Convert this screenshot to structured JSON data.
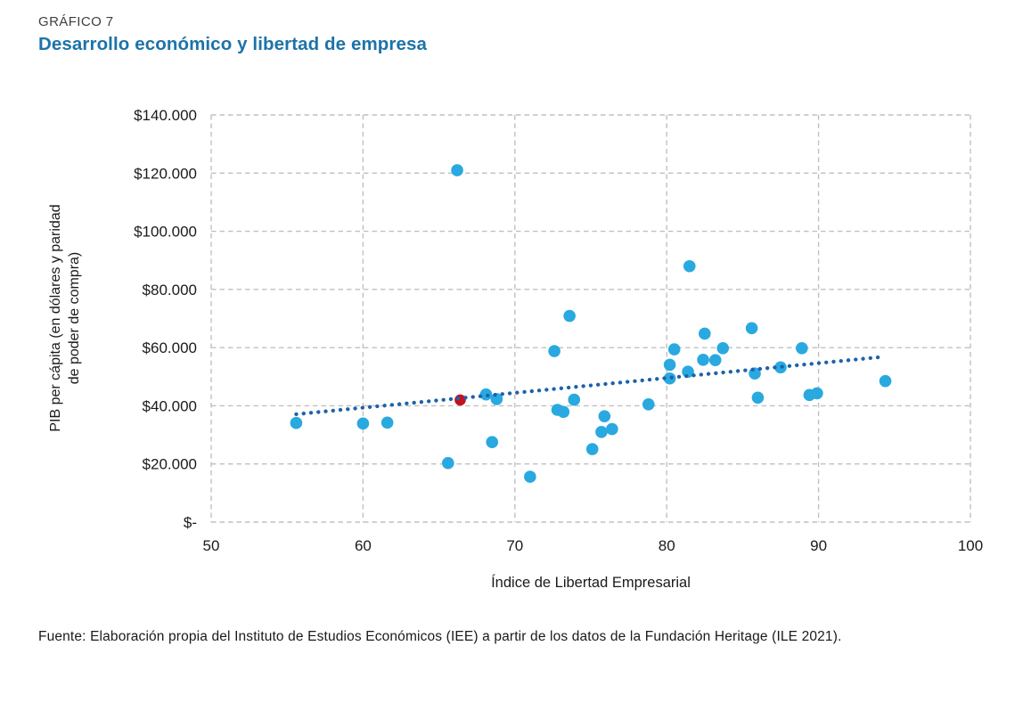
{
  "header": {
    "kicker": "GRÁFICO 7",
    "title": "Desarrollo económico y libertad de empresa"
  },
  "footer": {
    "source": "Fuente: Elaboración propia del Instituto de Estudios Económicos (IEE) a partir de los datos de la Fundación Heritage (ILE 2021)."
  },
  "colors": {
    "title_blue": "#1c73a9",
    "point_blue": "#29a9e0",
    "highlight_red": "#c1121f",
    "trend_blue": "#1e62a9",
    "grid_gray": "#c0c0c0",
    "text": "#1a1a1a"
  },
  "chart_data": {
    "type": "scatter",
    "title": "Desarrollo económico y libertad de empresa",
    "xlabel": "Índice de Libertad Empresarial",
    "ylabel": "PIB per cápita (en dólares y paridad de poder de compra)",
    "ylabel_lines": [
      "PIB per cápita (en dólares y paridad",
      "de poder de compra)"
    ],
    "xlim": [
      50,
      100
    ],
    "ylim": [
      0,
      140000
    ],
    "grid": "dashed",
    "legend": "none",
    "x_ticks": [
      {
        "v": 50,
        "label": "50"
      },
      {
        "v": 60,
        "label": "60"
      },
      {
        "v": 70,
        "label": "70"
      },
      {
        "v": 80,
        "label": "80"
      },
      {
        "v": 90,
        "label": "90"
      },
      {
        "v": 100,
        "label": "100"
      }
    ],
    "y_ticks": [
      {
        "v": 0,
        "label": "$-"
      },
      {
        "v": 20000,
        "label": "$20.000"
      },
      {
        "v": 40000,
        "label": "$40.000"
      },
      {
        "v": 60000,
        "label": "$60.000"
      },
      {
        "v": 80000,
        "label": "$80.000"
      },
      {
        "v": 100000,
        "label": "$100.000"
      },
      {
        "v": 120000,
        "label": "$120.000"
      },
      {
        "v": 140000,
        "label": "$140.000"
      }
    ],
    "series": [
      {
        "name": "paises",
        "color": "#29a9e0",
        "radius": 6.8,
        "points": [
          [
            55.6,
            34100
          ],
          [
            60.0,
            33900
          ],
          [
            61.6,
            34200
          ],
          [
            65.6,
            20300
          ],
          [
            66.2,
            121000
          ],
          [
            68.1,
            43900
          ],
          [
            68.5,
            27500
          ],
          [
            68.8,
            42300
          ],
          [
            71.0,
            15600
          ],
          [
            72.6,
            58800
          ],
          [
            72.8,
            38600
          ],
          [
            73.2,
            37900
          ],
          [
            73.6,
            70900
          ],
          [
            73.9,
            42100
          ],
          [
            75.1,
            25100
          ],
          [
            75.7,
            31000
          ],
          [
            75.9,
            36400
          ],
          [
            76.4,
            32000
          ],
          [
            78.8,
            40500
          ],
          [
            80.2,
            49400
          ],
          [
            80.2,
            54100
          ],
          [
            80.5,
            59400
          ],
          [
            81.4,
            51700
          ],
          [
            81.5,
            88000
          ],
          [
            82.4,
            55800
          ],
          [
            82.5,
            64800
          ],
          [
            83.2,
            55700
          ],
          [
            83.7,
            59800
          ],
          [
            85.6,
            66700
          ],
          [
            85.8,
            51100
          ],
          [
            86.0,
            42800
          ],
          [
            87.5,
            53200
          ],
          [
            88.9,
            59800
          ],
          [
            89.4,
            43700
          ],
          [
            89.9,
            44300
          ],
          [
            94.4,
            48500
          ]
        ]
      },
      {
        "name": "pais-destacado",
        "color": "#c1121f",
        "radius": 6.3,
        "points": [
          [
            66.4,
            42000
          ]
        ]
      }
    ],
    "trendline": {
      "type": "linear",
      "style": "dotted",
      "color": "#1e62a9",
      "from": [
        55.6,
        37100
      ],
      "to": [
        94.0,
        56700
      ]
    }
  }
}
